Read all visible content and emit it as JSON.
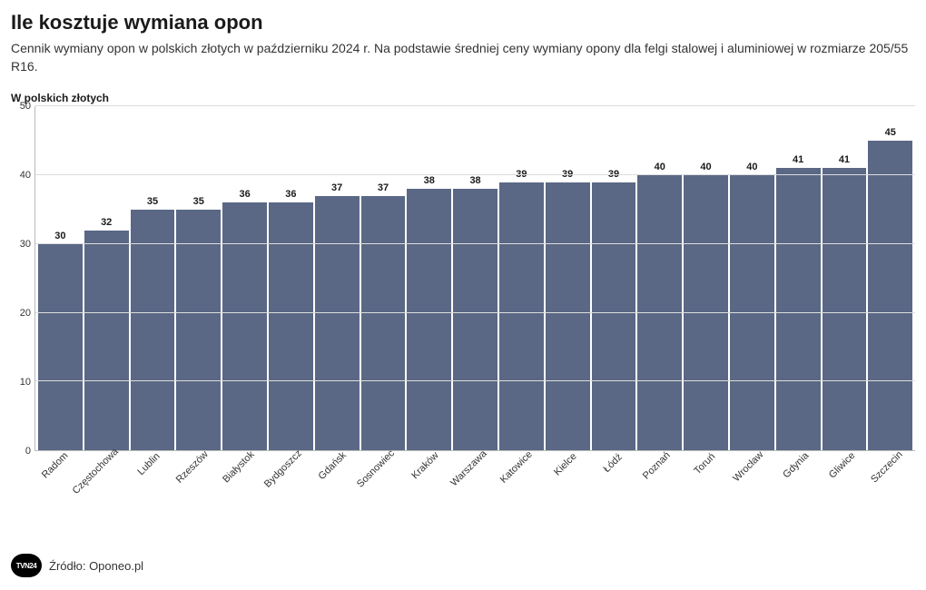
{
  "title": "Ile kosztuje wymiana opon",
  "subtitle": "Cennik wymiany opon w polskich złotych w październiku 2024 r. Na podstawie średniej ceny wymiany opony dla felgi stalowej i aluminiowej w rozmiarze 205/55 R16.",
  "ylabel": "W polskich złotych",
  "chart": {
    "type": "bar",
    "ylim": [
      0,
      50
    ],
    "yticks": [
      0,
      10,
      20,
      30,
      40,
      50
    ],
    "bar_color": "#5a6885",
    "grid_color": "#dcdcdc",
    "background_color": "#ffffff",
    "axis_color": "#bbbbbb",
    "value_fontsize": 11,
    "value_fontweight": 700,
    "xlabel_fontsize": 11,
    "xlabel_rotation": -45,
    "categories": [
      "Radom",
      "Częstochowa",
      "Lublin",
      "Rzeszów",
      "Białystok",
      "Bydgoszcz",
      "Gdańsk",
      "Sosnowiec",
      "Kraków",
      "Warszawa",
      "Katowice",
      "Kielce",
      "Łódź",
      "Poznań",
      "Toruń",
      "Wrocław",
      "Gdynia",
      "Gliwice",
      "Szczecin"
    ],
    "values": [
      30,
      32,
      35,
      35,
      36,
      36,
      37,
      37,
      38,
      38,
      39,
      39,
      39,
      40,
      40,
      40,
      41,
      41,
      45
    ]
  },
  "footer": {
    "logo_text": "TVN24",
    "source_text": "Źródło: Oponeo.pl"
  }
}
